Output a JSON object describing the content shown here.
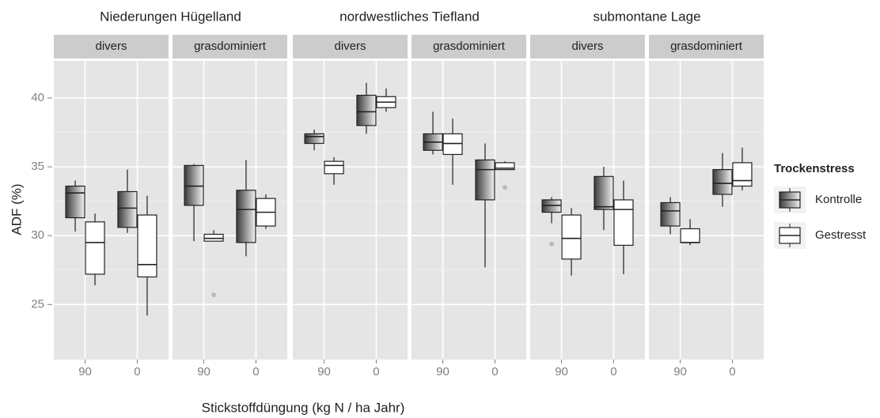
{
  "chart_data": {
    "type": "boxplot",
    "x_label": "Stickstoffdüngung (kg N / ha Jahr)",
    "y_label": "ADF (%)",
    "ylim": [
      21,
      42.7
    ],
    "yticks": [
      25,
      30,
      35,
      40
    ],
    "grid": true,
    "legend_title": "Trockenstress",
    "legend_position": "right",
    "series": [
      {
        "name": "Kontrolle",
        "color": "#3a3a3a"
      },
      {
        "name": "Gestresst",
        "color": "#ffffff"
      }
    ],
    "facets": [
      {
        "label": "Niederungen Hügelland",
        "panels": [
          {
            "label": "divers",
            "categories": [
              "90",
              "0"
            ],
            "data": [
              [
                {
                  "low": 30.3,
                  "q1": 31.3,
                  "median": 33.1,
                  "q3": 33.6,
                  "high": 34.0,
                  "outliers": []
                },
                {
                  "low": 30.2,
                  "q1": 30.6,
                  "median": 32.0,
                  "q3": 33.2,
                  "high": 34.8,
                  "outliers": []
                }
              ],
              [
                {
                  "low": 26.4,
                  "q1": 27.2,
                  "median": 29.5,
                  "q3": 31.0,
                  "high": 31.6,
                  "outliers": []
                },
                {
                  "low": 24.2,
                  "q1": 27.0,
                  "median": 27.9,
                  "q3": 31.5,
                  "high": 32.9,
                  "outliers": []
                }
              ]
            ]
          },
          {
            "label": "grasdominiert",
            "categories": [
              "90",
              "0"
            ],
            "data": [
              [
                {
                  "low": 29.6,
                  "q1": 32.2,
                  "median": 33.6,
                  "q3": 35.1,
                  "high": 35.2,
                  "outliers": []
                },
                {
                  "low": 28.5,
                  "q1": 29.5,
                  "median": 31.9,
                  "q3": 33.3,
                  "high": 35.5,
                  "outliers": []
                }
              ],
              [
                {
                  "low": 29.6,
                  "q1": 29.6,
                  "median": 29.8,
                  "q3": 30.1,
                  "high": 30.4,
                  "outliers": [
                    25.7
                  ]
                },
                {
                  "low": 30.5,
                  "q1": 30.7,
                  "median": 31.7,
                  "q3": 32.7,
                  "high": 33.0,
                  "outliers": []
                }
              ]
            ]
          }
        ]
      },
      {
        "label": "nordwestliches Tiefland",
        "panels": [
          {
            "label": "divers",
            "categories": [
              "90",
              "0"
            ],
            "data": [
              [
                {
                  "low": 36.2,
                  "q1": 36.7,
                  "median": 37.2,
                  "q3": 37.4,
                  "high": 37.7,
                  "outliers": []
                },
                {
                  "low": 37.4,
                  "q1": 38.0,
                  "median": 39.0,
                  "q3": 40.2,
                  "high": 41.1,
                  "outliers": []
                }
              ],
              [
                {
                  "low": 33.7,
                  "q1": 34.5,
                  "median": 35.1,
                  "q3": 35.4,
                  "high": 35.7,
                  "outliers": []
                },
                {
                  "low": 39.0,
                  "q1": 39.3,
                  "median": 39.7,
                  "q3": 40.1,
                  "high": 40.7,
                  "outliers": []
                }
              ]
            ]
          },
          {
            "label": "grasdominiert",
            "categories": [
              "90",
              "0"
            ],
            "data": [
              [
                {
                  "low": 35.9,
                  "q1": 36.2,
                  "median": 36.8,
                  "q3": 37.4,
                  "high": 39.0,
                  "outliers": []
                },
                {
                  "low": 27.7,
                  "q1": 32.6,
                  "median": 34.8,
                  "q3": 35.5,
                  "high": 36.7,
                  "outliers": []
                }
              ],
              [
                {
                  "low": 33.7,
                  "q1": 35.9,
                  "median": 36.7,
                  "q3": 37.4,
                  "high": 38.5,
                  "outliers": []
                },
                {
                  "low": 34.8,
                  "q1": 34.8,
                  "median": 34.9,
                  "q3": 35.3,
                  "high": 35.4,
                  "outliers": [
                    33.5
                  ]
                }
              ]
            ]
          }
        ]
      },
      {
        "label": "submontane Lage",
        "panels": [
          {
            "label": "divers",
            "categories": [
              "90",
              "0"
            ],
            "data": [
              [
                {
                  "low": 30.9,
                  "q1": 31.7,
                  "median": 32.2,
                  "q3": 32.6,
                  "high": 32.8,
                  "outliers": [
                    29.4
                  ]
                },
                {
                  "low": 30.4,
                  "q1": 31.9,
                  "median": 32.1,
                  "q3": 34.3,
                  "high": 35.0,
                  "outliers": []
                }
              ],
              [
                {
                  "low": 27.1,
                  "q1": 28.3,
                  "median": 29.8,
                  "q3": 31.5,
                  "high": 32.0,
                  "outliers": []
                },
                {
                  "low": 27.2,
                  "q1": 29.3,
                  "median": 31.9,
                  "q3": 32.6,
                  "high": 34.0,
                  "outliers": []
                }
              ]
            ]
          },
          {
            "label": "grasdominiert",
            "categories": [
              "90",
              "0"
            ],
            "data": [
              [
                {
                  "low": 30.1,
                  "q1": 30.7,
                  "median": 31.8,
                  "q3": 32.4,
                  "high": 32.8,
                  "outliers": []
                },
                {
                  "low": 32.1,
                  "q1": 33.0,
                  "median": 33.8,
                  "q3": 34.8,
                  "high": 36.0,
                  "outliers": []
                }
              ],
              [
                {
                  "low": 29.3,
                  "q1": 29.5,
                  "median": 29.5,
                  "q3": 30.5,
                  "high": 31.2,
                  "outliers": []
                },
                {
                  "low": 33.3,
                  "q1": 33.6,
                  "median": 34.0,
                  "q3": 35.3,
                  "high": 36.4,
                  "outliers": []
                }
              ]
            ]
          }
        ]
      }
    ]
  }
}
